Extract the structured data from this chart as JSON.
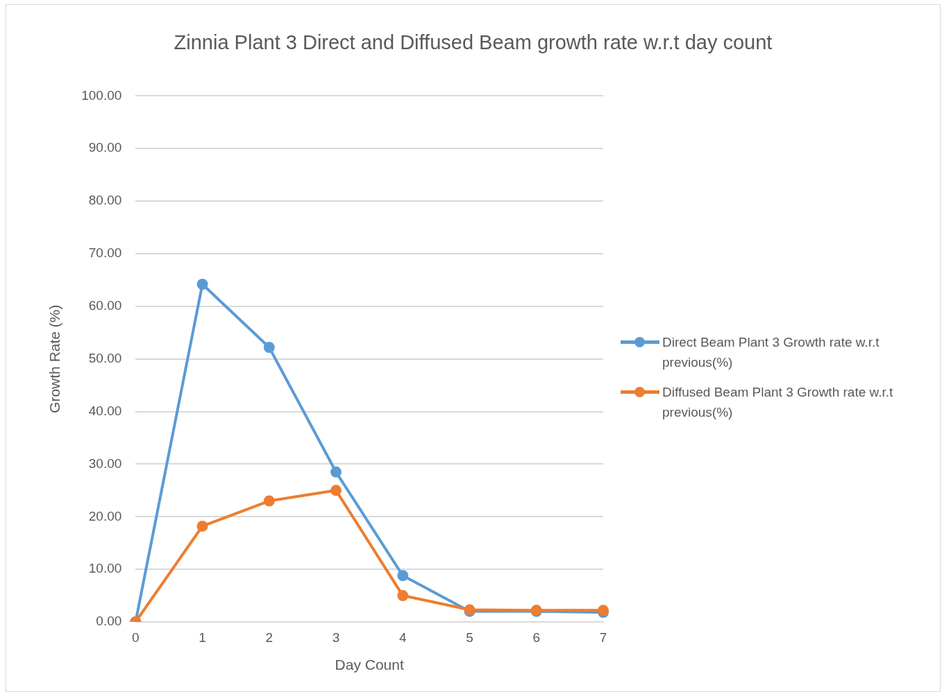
{
  "chart_data": {
    "type": "line",
    "title": "Zinnia Plant 3 Direct and Diffused Beam growth rate w.r.t day count",
    "xlabel": "Day Count",
    "ylabel": "Growth Rate (%)",
    "categories": [
      "0",
      "1",
      "2",
      "3",
      "4",
      "5",
      "6",
      "7"
    ],
    "series": [
      {
        "name": "Direct Beam Plant 3 Growth rate w.r.t previous(%)",
        "color": "#5b9bd5",
        "values": [
          0,
          64.2,
          52.2,
          28.5,
          8.8,
          2.0,
          2.0,
          1.8
        ]
      },
      {
        "name": "Diffused Beam Plant 3 Growth rate w.r.t previous(%)",
        "color": "#ed7d31",
        "values": [
          0,
          18.2,
          23.0,
          25.0,
          5.0,
          2.3,
          2.2,
          2.2
        ]
      }
    ],
    "ylim": [
      0,
      100
    ],
    "yticks": [
      {
        "value": 0,
        "label": "0.00"
      },
      {
        "value": 10,
        "label": "10.00"
      },
      {
        "value": 20,
        "label": "20.00"
      },
      {
        "value": 30,
        "label": "30.00"
      },
      {
        "value": 40,
        "label": "40.00"
      },
      {
        "value": 50,
        "label": "50.00"
      },
      {
        "value": 60,
        "label": "60.00"
      },
      {
        "value": 70,
        "label": "70.00"
      },
      {
        "value": 80,
        "label": "80.00"
      },
      {
        "value": 90,
        "label": "90.00"
      },
      {
        "value": 100,
        "label": "100.00"
      }
    ],
    "grid": "y",
    "legend": "right",
    "marker": "circle",
    "line_style": "solid"
  }
}
